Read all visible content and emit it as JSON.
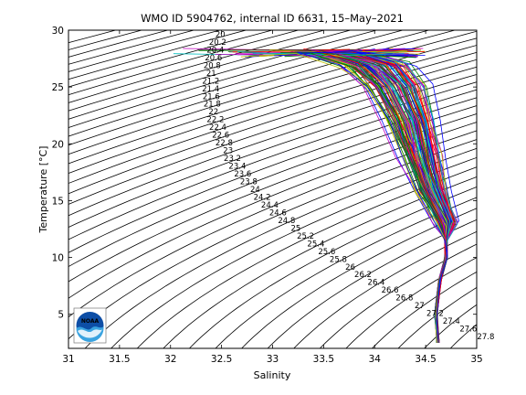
{
  "chart_data": {
    "type": "line",
    "title": "WMO ID 5904762, internal ID 6631, 15–May–2021",
    "xlabel": "Salinity",
    "ylabel": "Temperature [°C]",
    "xlim": [
      31,
      35
    ],
    "ylim": [
      2,
      30
    ],
    "x_ticks": [
      "31",
      "31.5",
      "32",
      "32.5",
      "33",
      "33.5",
      "34",
      "34.5",
      "35"
    ],
    "y_ticks": [
      "5",
      "10",
      "15",
      "20",
      "25",
      "30"
    ],
    "grid": false,
    "legend": "none",
    "isopycnal_contours": {
      "sigma_min": 19.0,
      "sigma_max": 28.4,
      "step": 0.2,
      "color": "#000000",
      "label_values": [
        "20",
        "20.2",
        "20.4",
        "20.6",
        "20.8",
        "21",
        "21.2",
        "21.4",
        "21.6",
        "21.8",
        "22",
        "22.2",
        "22.4",
        "22.6",
        "22.8",
        "23",
        "23.2",
        "23.4",
        "23.6",
        "23.8",
        "24",
        "24.2",
        "24.4",
        "24.6",
        "24.8",
        "25",
        "25.2",
        "25.4",
        "25.6",
        "25.8",
        "26",
        "26.2",
        "26.4",
        "26.6",
        "26.8",
        "27",
        "27.2",
        "27.4",
        "27.6",
        "27.8"
      ]
    },
    "profiles": {
      "count": 120,
      "colors": [
        "#0000ff",
        "#008000",
        "#ff0000",
        "#00bfbf",
        "#bf00bf",
        "#bfbf00",
        "#404040"
      ],
      "deep_points": [
        {
          "salinity": 34.62,
          "temperature": 2.5
        },
        {
          "salinity": 34.6,
          "temperature": 5.0
        },
        {
          "salinity": 34.64,
          "temperature": 8.0
        },
        {
          "salinity": 34.7,
          "temperature": 10.0
        },
        {
          "salinity": 34.7,
          "temperature": 11.5
        }
      ],
      "thermocline_core": [
        {
          "salinity": 34.7,
          "temperature": 13.0
        },
        {
          "salinity": 34.55,
          "temperature": 16.0
        },
        {
          "salinity": 34.45,
          "temperature": 19.0
        },
        {
          "salinity": 34.35,
          "temperature": 22.0
        },
        {
          "salinity": 34.2,
          "temperature": 25.0
        },
        {
          "salinity": 34.0,
          "temperature": 27.0
        },
        {
          "salinity": 33.6,
          "temperature": 28.0
        }
      ],
      "surface_salinity_range": [
        31.75,
        34.5
      ],
      "surface_temperature_range": [
        27.6,
        28.4
      ]
    },
    "logo": {
      "text": "NOAA",
      "icon": "noaa-logo-icon"
    }
  }
}
